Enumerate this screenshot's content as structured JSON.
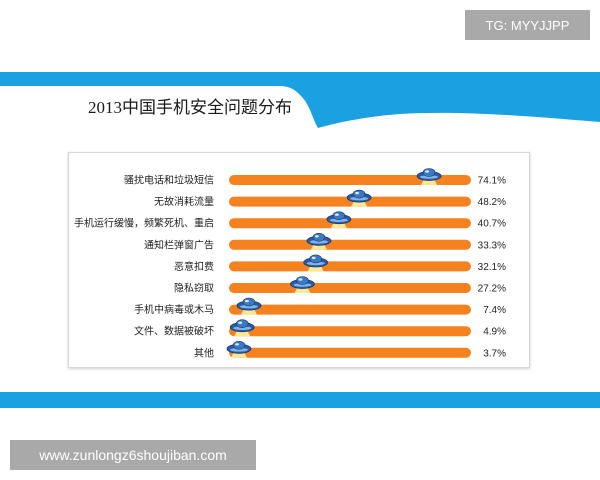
{
  "watermarks": {
    "top_right": "TG: MYYJJPP",
    "bottom_left": "www.zunlongz6shoujiban.com"
  },
  "colors": {
    "header_blue": "#1ba1e2",
    "bar_orange": "#f5821f",
    "marker_blue": "#2a5ca8",
    "watermark_gray": "#a9a9a9"
  },
  "chart_data": {
    "type": "bar",
    "orientation": "horizontal",
    "title": "2013中国手机安全问题分布",
    "marker_icon": "ufo-marker-icon",
    "categories": [
      "骚扰电话和垃圾短信",
      "无故消耗流量",
      "手机运行缓慢，频繁死机、重启",
      "通知栏弹窗广告",
      "恶意扣费",
      "隐私窃取",
      "手机中病毒或木马",
      "文件、数据被破坏",
      "其他"
    ],
    "values": [
      74.1,
      48.2,
      40.7,
      33.3,
      32.1,
      27.2,
      7.4,
      4.9,
      3.7
    ],
    "value_labels": [
      "74.1%",
      "48.2%",
      "40.7%",
      "33.3%",
      "32.1%",
      "27.2%",
      "7.4%",
      "4.9%",
      "3.7%"
    ]
  }
}
